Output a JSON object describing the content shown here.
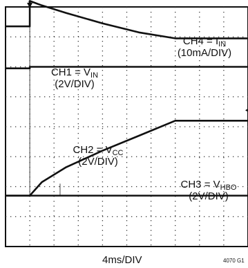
{
  "chart_data": {
    "type": "line",
    "title": "",
    "xlabel": "4ms/DIV",
    "figure_id": "4070 G1",
    "grid": true,
    "divisions": {
      "x": 10,
      "y": 8
    },
    "x_unit": "ms",
    "x_range": [
      0,
      40
    ],
    "channels": [
      {
        "id": "CH4",
        "sub": "IN",
        "prefix": "CH4 = I",
        "scale": "(10mA/DIV)",
        "x": [
          0,
          4,
          4,
          6,
          10,
          16,
          22,
          28,
          32,
          36,
          40
        ],
        "y_div": [
          7.35,
          7.35,
          8.2,
          8.05,
          7.8,
          7.45,
          7.15,
          6.95,
          6.95,
          6.95,
          6.95
        ]
      },
      {
        "id": "CH1",
        "sub": "IN",
        "prefix": "CH1 = V",
        "scale": "(2V/DIV)",
        "x": [
          0,
          4,
          4,
          40
        ],
        "y_div": [
          5.95,
          5.95,
          6.0,
          6.0
        ]
      },
      {
        "id": "CH2",
        "sub": "CC",
        "prefix": "CH2 = V",
        "scale": "(2V/DIV)",
        "x": [
          0,
          4,
          6,
          10,
          16,
          22,
          28,
          32,
          36,
          40
        ],
        "y_div": [
          1.7,
          1.7,
          2.15,
          2.65,
          3.2,
          3.7,
          4.2,
          4.2,
          4.2,
          4.2
        ]
      },
      {
        "id": "CH3",
        "sub": "HBO",
        "prefix": "CH3 = V",
        "scale": "(2V/DIV)",
        "x": [
          0,
          4,
          9,
          9,
          40
        ],
        "y_div": [
          1.7,
          1.7,
          1.7,
          1.7,
          1.7
        ]
      }
    ]
  }
}
